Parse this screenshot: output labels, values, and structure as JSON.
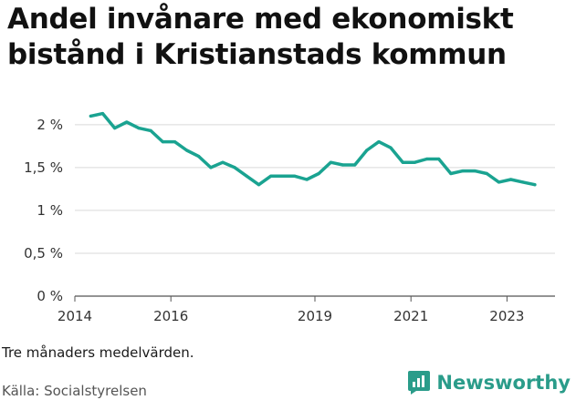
{
  "title": "Andel invånare med ekonomiskt bistånd i Kristianstads kommun",
  "note": "Tre månaders medelvärden.",
  "source": "Källa: Socialstyrelsen",
  "brand": {
    "name": "Newsworthy"
  },
  "colors": {
    "line": "#1aa391",
    "grid": "#d9d9d9",
    "axis": "#555555",
    "brand": "#2a9c8a"
  },
  "chart_data": {
    "type": "line",
    "title": "Andel invånare med ekonomiskt bistånd i Kristianstads kommun",
    "xlabel": "",
    "ylabel": "",
    "ylim": [
      0,
      2.2
    ],
    "xlim": [
      2014,
      2024
    ],
    "yticks": [
      {
        "value": 0,
        "label": "0 %"
      },
      {
        "value": 0.5,
        "label": "0,5 %"
      },
      {
        "value": 1,
        "label": "1 %"
      },
      {
        "value": 1.5,
        "label": "1,5 %"
      },
      {
        "value": 2,
        "label": "2 %"
      }
    ],
    "xticks": [
      {
        "value": 2014,
        "label": "2014"
      },
      {
        "value": 2016,
        "label": "2016"
      },
      {
        "value": 2019,
        "label": "2019"
      },
      {
        "value": 2021,
        "label": "2021"
      },
      {
        "value": 2023,
        "label": "2023"
      }
    ],
    "grid": true,
    "series": [
      {
        "x": [
          2014.33,
          2014.58,
          2014.83,
          2015.08,
          2015.33,
          2015.58,
          2015.83,
          2016.08,
          2016.33,
          2016.58,
          2016.83,
          2017.08,
          2017.33,
          2017.58,
          2017.83,
          2018.08,
          2018.33,
          2018.58,
          2018.83,
          2019.08,
          2019.33,
          2019.58,
          2019.83,
          2020.08,
          2020.33,
          2020.58,
          2020.83,
          2021.08,
          2021.33,
          2021.58,
          2021.83,
          2022.08,
          2022.33,
          2022.58,
          2022.83,
          2023.08,
          2023.33,
          2023.58
        ],
        "y": [
          2.1,
          2.13,
          1.96,
          2.03,
          1.96,
          1.93,
          1.8,
          1.8,
          1.7,
          1.63,
          1.5,
          1.56,
          1.5,
          1.4,
          1.3,
          1.4,
          1.4,
          1.4,
          1.36,
          1.43,
          1.56,
          1.53,
          1.53,
          1.7,
          1.8,
          1.73,
          1.56,
          1.56,
          1.6,
          1.6,
          1.43,
          1.46,
          1.46,
          1.43,
          1.33,
          1.36,
          1.33,
          1.3
        ]
      }
    ]
  }
}
